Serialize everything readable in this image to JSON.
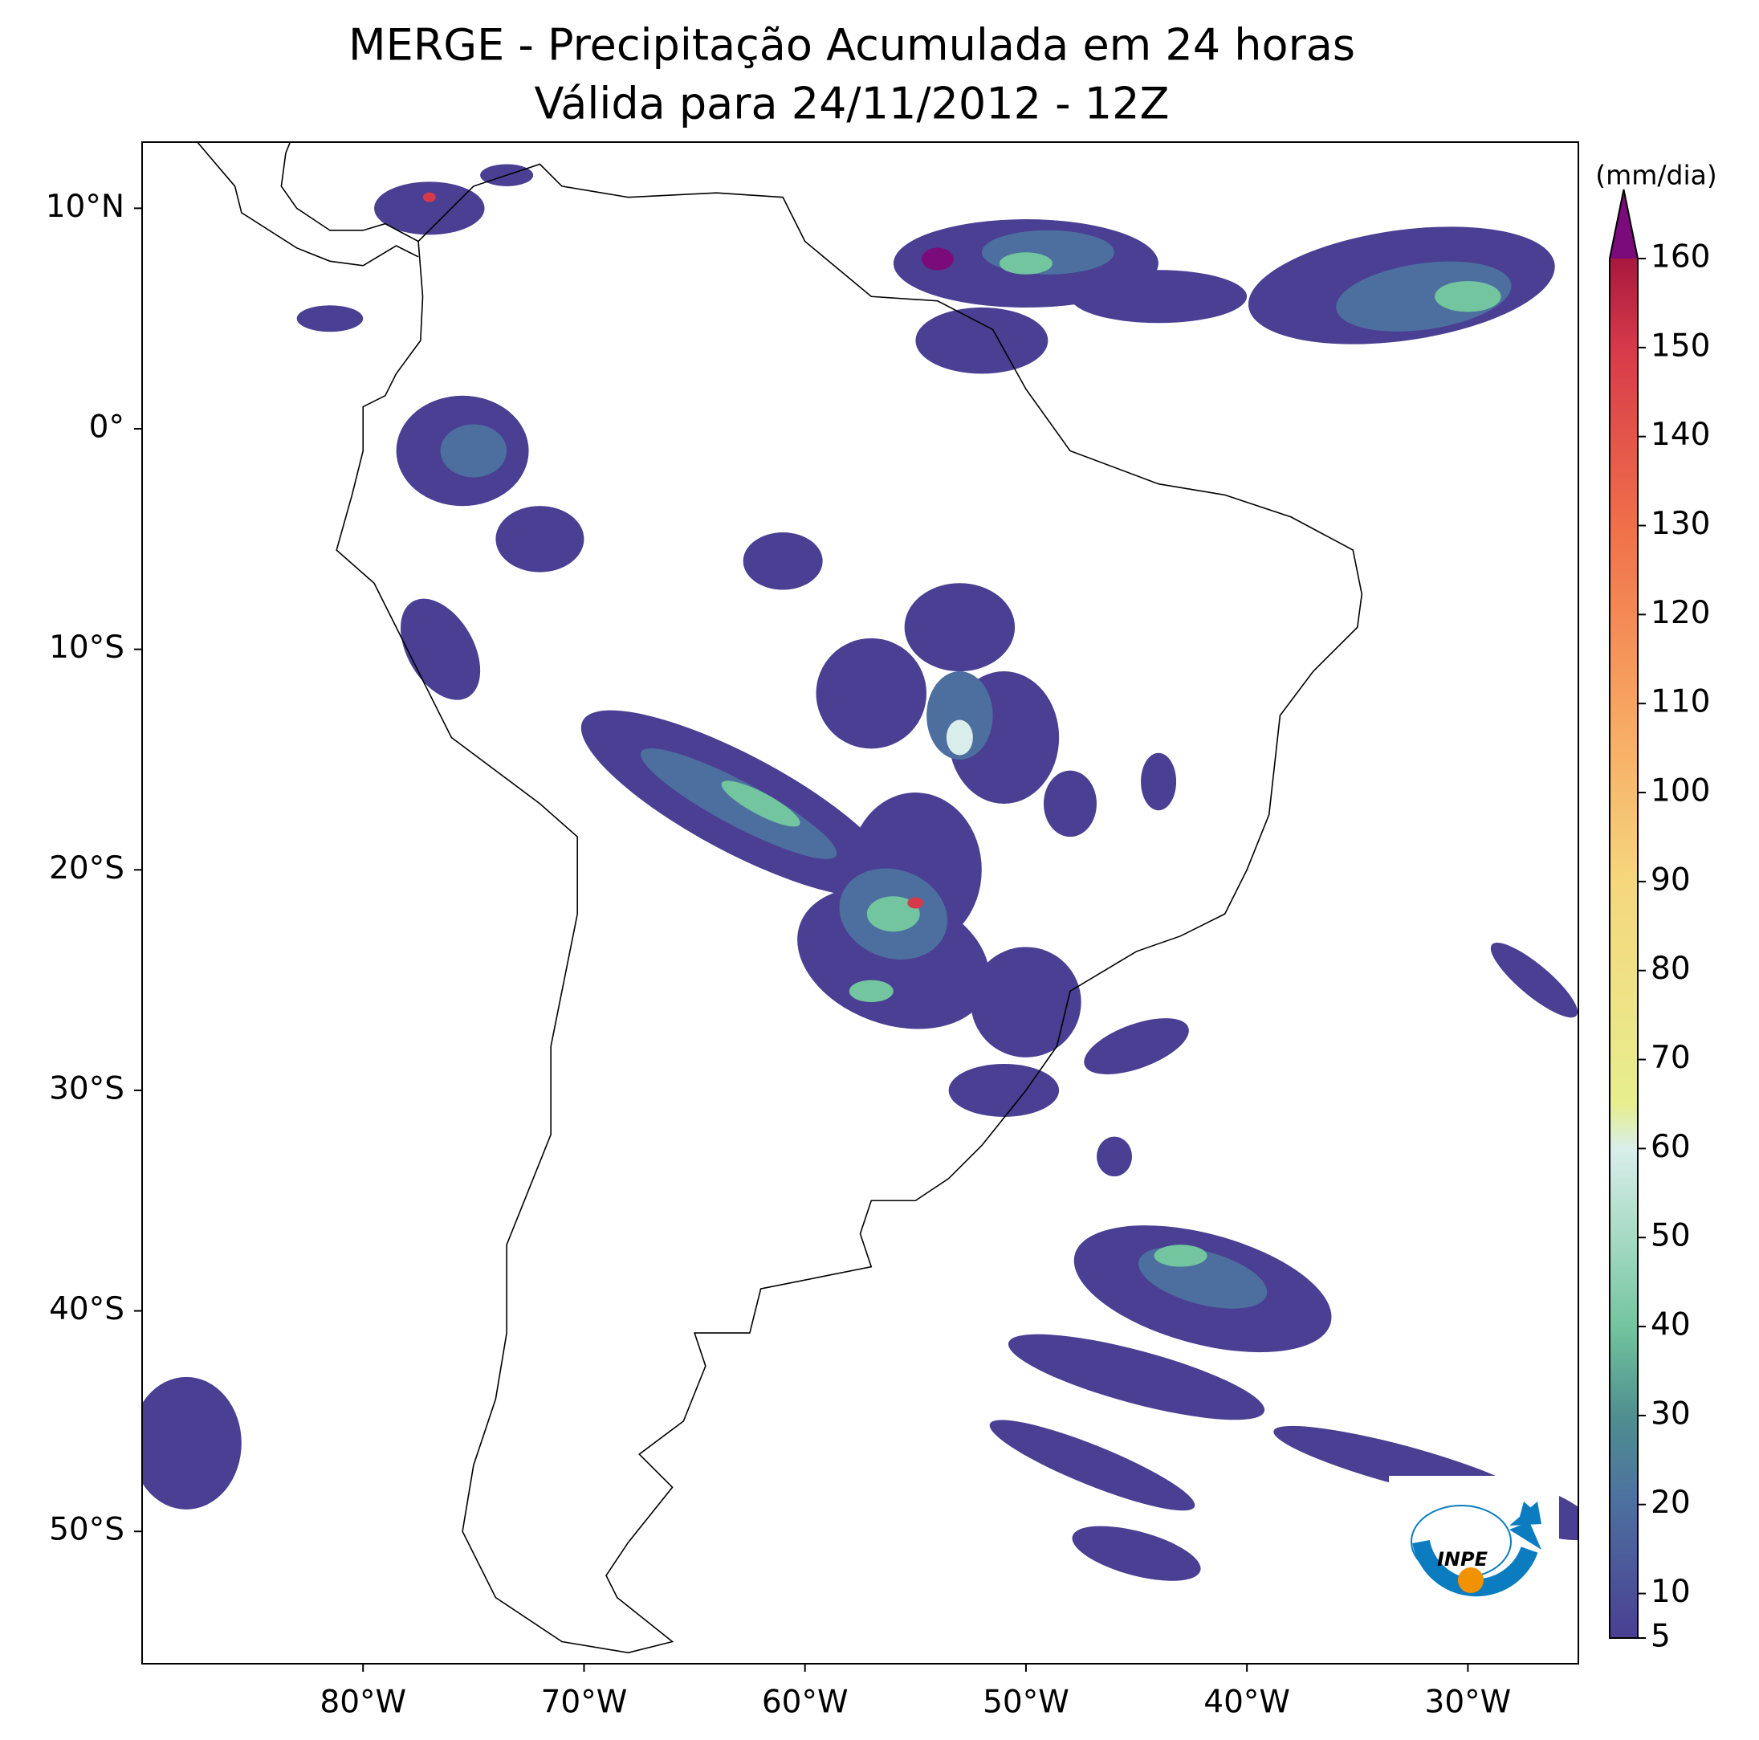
{
  "map": {
    "title": "MERGE - Precipitação Acumulada em 24 horas",
    "subtitle": "Válida para 24/11/2012 - 12Z",
    "xlim": [
      -90,
      -25
    ],
    "ylim": [
      -56,
      13
    ],
    "xticks": [
      {
        "value": -80,
        "label": "80°W"
      },
      {
        "value": -70,
        "label": "70°W"
      },
      {
        "value": -60,
        "label": "60°W"
      },
      {
        "value": -50,
        "label": "50°W"
      },
      {
        "value": -40,
        "label": "40°W"
      },
      {
        "value": -30,
        "label": "30°W"
      }
    ],
    "yticks": [
      {
        "value": 10,
        "label": "10°N"
      },
      {
        "value": 0,
        "label": "0°"
      },
      {
        "value": -10,
        "label": "10°S"
      },
      {
        "value": -20,
        "label": "20°S"
      },
      {
        "value": -30,
        "label": "30°S"
      },
      {
        "value": -40,
        "label": "40°S"
      },
      {
        "value": -50,
        "label": "50°S"
      }
    ],
    "colorbar": {
      "label": "(mm/dia)",
      "range": [
        5,
        160
      ],
      "ticks": [
        5,
        10,
        20,
        30,
        40,
        50,
        60,
        70,
        80,
        90,
        100,
        110,
        120,
        130,
        140,
        150,
        160
      ],
      "colors": [
        {
          "value": 5,
          "color": "#4a3f92"
        },
        {
          "value": 20,
          "color": "#4d6fa0"
        },
        {
          "value": 30,
          "color": "#4f8f8f"
        },
        {
          "value": 40,
          "color": "#73c59f"
        },
        {
          "value": 60,
          "color": "#d9eeea"
        },
        {
          "value": 65,
          "color": "#e6ee8e"
        },
        {
          "value": 90,
          "color": "#f6d77c"
        },
        {
          "value": 110,
          "color": "#f7a360"
        },
        {
          "value": 130,
          "color": "#f06f4a"
        },
        {
          "value": 150,
          "color": "#d63a4a"
        },
        {
          "value": 160,
          "color": "#a8183e"
        }
      ],
      "extend_color": "#7b0a7a"
    },
    "logo_text": "INPE"
  }
}
